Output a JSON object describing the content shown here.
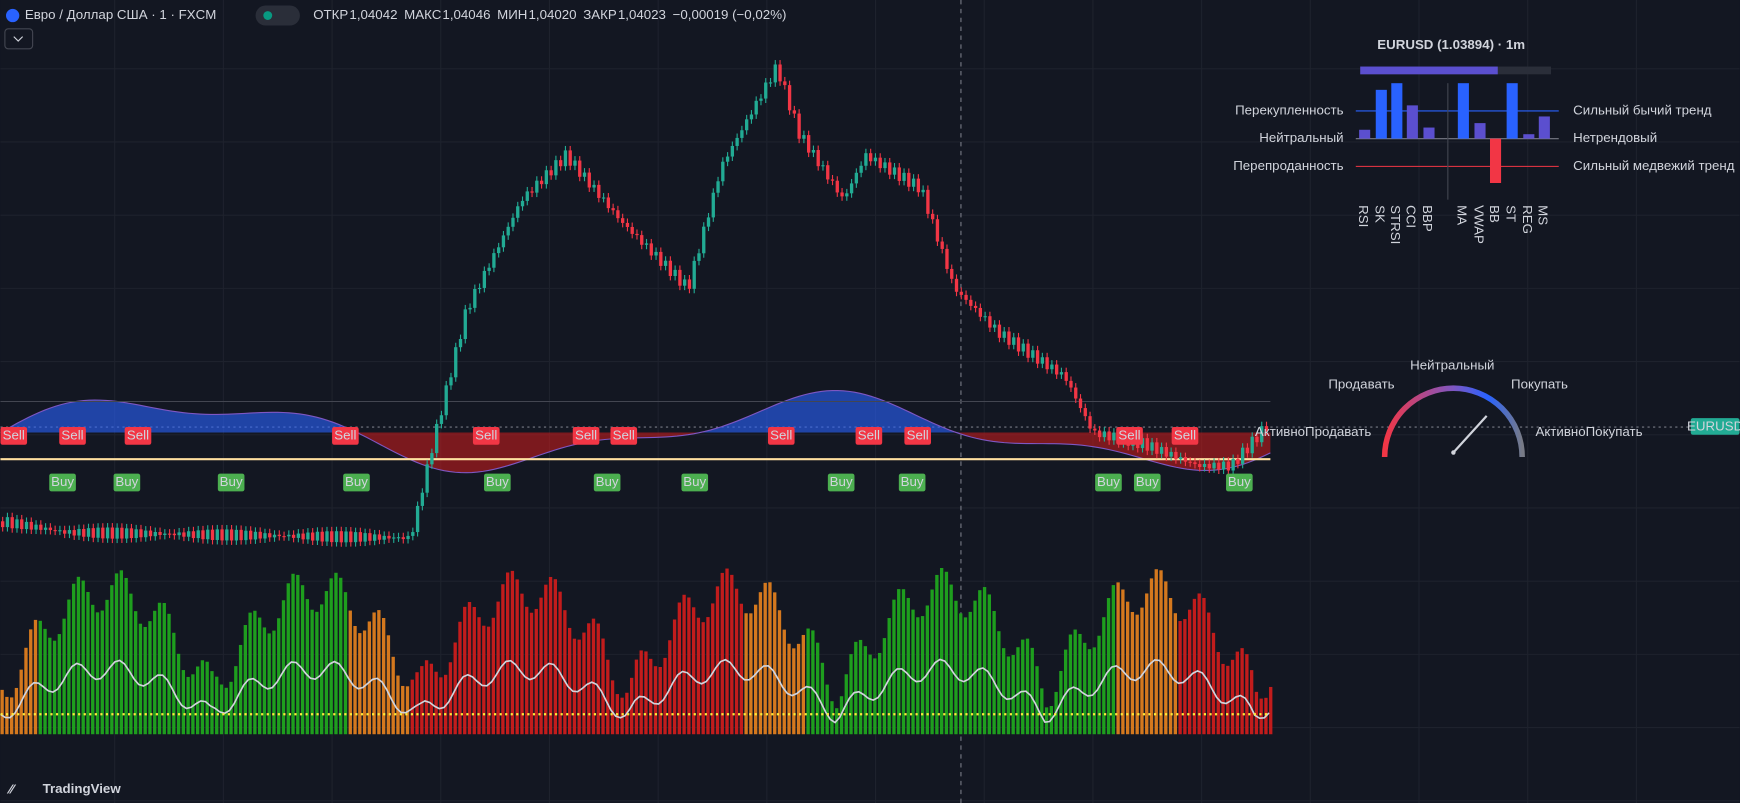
{
  "header": {
    "symbol": "Евро / Доллар США · 1 · FXCM",
    "ohlc": [
      {
        "label": "ОТКР",
        "value": "1,04042"
      },
      {
        "label": "МАКС",
        "value": "1,04046"
      },
      {
        "label": "МИН",
        "value": "1,04020"
      },
      {
        "label": "ЗАКР",
        "value": "1,04023"
      }
    ],
    "change": "−0,00019 (−0,02%)"
  },
  "signals": {
    "sell": "Sell",
    "buy": "Buy"
  },
  "price_tag": "EURUSD",
  "panel": {
    "title": "EURUSD (1.03894) · 1m",
    "left": [
      "Перекупленность",
      "Нейтральный",
      "Перепроданность"
    ],
    "right": [
      "Сильный бычий тренд",
      "Нетрендовый",
      "Сильный медвежий тренд"
    ],
    "columns": [
      "RSI",
      "SK",
      "STRSI",
      "CCI",
      "BBP",
      "MA",
      "VWAP",
      "BB",
      "ST",
      "REG",
      "MS"
    ]
  },
  "gauge": {
    "sell": "Продавать",
    "neutral": "Нейтральный",
    "buy": "Покупать",
    "strong_sell": "АктивноПродавать",
    "strong_buy": "АктивноПокупать"
  },
  "logo": "TradingView"
}
